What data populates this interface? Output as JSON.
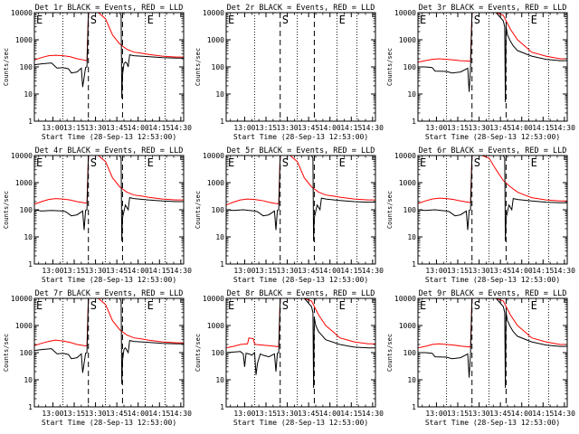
{
  "figure": {
    "xlabel": "Start Time (28-Sep-13 12:53:00)",
    "ylabel": "Counts/sec"
  },
  "chart_data": {
    "type": "line",
    "x_ticks": [
      "13:00",
      "13:15",
      "13:30",
      "13:45",
      "14:00",
      "14:15",
      "14:30"
    ],
    "x_tick_minutes": [
      13,
      28,
      43,
      58,
      73,
      88,
      103
    ],
    "xlim_minutes": [
      0,
      105
    ],
    "xlabel": "Start Time (28-Sep-13 12:53:00)",
    "ylabel": "Counts/sec",
    "y_scale": "log",
    "ylim": [
      1,
      10000
    ],
    "y_ticks": [
      "1",
      "10",
      "100",
      "1000",
      "10000"
    ],
    "series_names": [
      "BLACK = Events",
      "RED = LLD"
    ],
    "series_colors": {
      "events": "#000000",
      "lld": "#ff0000"
    },
    "panels": [
      {
        "title": "Det 1r BLACK = Events, RED = LLD",
        "flags": [
          {
            "label": "E",
            "minute": 0
          },
          {
            "label": "S",
            "minute": 38
          },
          {
            "label": "E",
            "minute": 78
          }
        ],
        "dashed_minutes": [
          38,
          62
        ],
        "dotted_minutes": [
          20,
          50,
          78,
          92
        ],
        "events": {
          "x": [
            0,
            5,
            12,
            16,
            20,
            22,
            24,
            26,
            30,
            33,
            34,
            36,
            37,
            38,
            38.5,
            45,
            60,
            61,
            61.5,
            62,
            63,
            64,
            65,
            66,
            67,
            70,
            80,
            90,
            100,
            105
          ],
          "y": [
            120,
            130,
            140,
            90,
            95,
            90,
            85,
            60,
            65,
            90,
            18,
            95,
            100,
            10000,
            10000,
            10000,
            10000,
            8000,
            7,
            50,
            130,
            150,
            140,
            100,
            280,
            260,
            240,
            220,
            210,
            210
          ]
        },
        "lld": {
          "x": [
            0,
            5,
            10,
            15,
            20,
            25,
            30,
            35,
            36,
            37,
            38,
            40,
            45,
            50,
            55,
            60,
            65,
            70,
            75,
            80,
            90,
            100,
            105
          ],
          "y": [
            180,
            220,
            260,
            270,
            260,
            240,
            200,
            180,
            170,
            175,
            10000,
            10000,
            10000,
            6000,
            1500,
            700,
            450,
            350,
            320,
            290,
            250,
            230,
            230
          ]
        }
      },
      {
        "title": "Det 2r BLACK = Events, RED = LLD",
        "flags": [
          {
            "label": "E",
            "minute": 0
          },
          {
            "label": "S",
            "minute": 38
          },
          {
            "label": "E",
            "minute": 78
          }
        ],
        "dashed_minutes": [
          38,
          62
        ],
        "dotted_minutes": [
          20,
          50,
          78,
          92
        ],
        "events": {
          "x": [],
          "y": []
        },
        "lld": {
          "x": [],
          "y": []
        }
      },
      {
        "title": "Det 3r BLACK = Events, RED = LLD",
        "flags": [
          {
            "label": "E",
            "minute": 0
          },
          {
            "label": "S",
            "minute": 38
          },
          {
            "label": "E",
            "minute": 78
          }
        ],
        "dashed_minutes": [
          38,
          62
        ],
        "dotted_minutes": [
          20,
          50,
          78,
          92
        ],
        "events": {
          "x": [
            0,
            5,
            10,
            12,
            20,
            24,
            30,
            35,
            36,
            37,
            38,
            40,
            45,
            55,
            60,
            61,
            61.5,
            62,
            63,
            65,
            67,
            70,
            80,
            90,
            100,
            105
          ],
          "y": [
            100,
            100,
            95,
            70,
            68,
            60,
            65,
            90,
            12,
            90,
            10000,
            10000,
            10000,
            10000,
            5000,
            3000,
            5,
            3000,
            1500,
            900,
            600,
            400,
            250,
            190,
            170,
            170
          ]
        },
        "lld": {
          "x": [
            0,
            5,
            10,
            15,
            20,
            25,
            30,
            35,
            37,
            38,
            40,
            45,
            55,
            60,
            65,
            70,
            75,
            80,
            90,
            100,
            105
          ],
          "y": [
            150,
            170,
            190,
            200,
            190,
            180,
            170,
            165,
            160,
            10000,
            10000,
            10000,
            10000,
            8000,
            2500,
            1000,
            600,
            350,
            250,
            200,
            200
          ]
        }
      },
      {
        "title": "Det 4r BLACK = Events, RED = LLD",
        "flags": [
          {
            "label": "E",
            "minute": 0
          },
          {
            "label": "S",
            "minute": 38
          },
          {
            "label": "E",
            "minute": 78
          }
        ],
        "dashed_minutes": [
          38,
          62
        ],
        "dotted_minutes": [
          20,
          50,
          78,
          92
        ],
        "events": {
          "x": [
            0,
            5,
            12,
            20,
            22,
            26,
            30,
            34,
            35,
            36,
            37,
            38,
            45,
            60,
            61,
            61.5,
            62,
            64,
            66,
            67,
            70,
            80,
            90,
            100,
            105
          ],
          "y": [
            100,
            90,
            95,
            90,
            85,
            60,
            65,
            90,
            18,
            95,
            100,
            10000,
            10000,
            10000,
            8000,
            7,
            50,
            150,
            100,
            280,
            260,
            230,
            210,
            200,
            200
          ]
        },
        "lld": {
          "x": [
            0,
            5,
            10,
            15,
            20,
            25,
            30,
            35,
            37,
            38,
            40,
            45,
            50,
            55,
            60,
            65,
            70,
            75,
            80,
            90,
            100,
            105
          ],
          "y": [
            160,
            200,
            240,
            260,
            250,
            230,
            200,
            180,
            175,
            10000,
            10000,
            10000,
            6000,
            1500,
            700,
            450,
            350,
            320,
            290,
            250,
            230,
            230
          ]
        }
      },
      {
        "title": "Det 5r BLACK = Events, RED = LLD",
        "flags": [
          {
            "label": "E",
            "minute": 0
          },
          {
            "label": "S",
            "minute": 38
          },
          {
            "label": "E",
            "minute": 78
          }
        ],
        "dashed_minutes": [
          38,
          62
        ],
        "dotted_minutes": [
          20,
          50,
          78,
          92
        ],
        "events": {
          "x": [
            0,
            5,
            12,
            20,
            22,
            26,
            30,
            34,
            35,
            36,
            37,
            38,
            45,
            60,
            61,
            61.5,
            62,
            64,
            66,
            67,
            70,
            80,
            90,
            100,
            105
          ],
          "y": [
            100,
            95,
            100,
            90,
            85,
            60,
            65,
            90,
            18,
            95,
            100,
            10000,
            10000,
            10000,
            8000,
            7,
            50,
            150,
            100,
            270,
            250,
            220,
            200,
            190,
            190
          ]
        },
        "lld": {
          "x": [
            0,
            5,
            10,
            15,
            20,
            25,
            30,
            35,
            37,
            38,
            40,
            45,
            50,
            55,
            60,
            65,
            70,
            75,
            80,
            90,
            100,
            105
          ],
          "y": [
            150,
            190,
            230,
            250,
            240,
            220,
            190,
            170,
            165,
            10000,
            10000,
            10000,
            6000,
            1500,
            700,
            450,
            350,
            320,
            290,
            250,
            230,
            230
          ]
        }
      },
      {
        "title": "Det 6r BLACK = Events, RED = LLD",
        "flags": [
          {
            "label": "E",
            "minute": 0
          },
          {
            "label": "S",
            "minute": 38
          },
          {
            "label": "E",
            "minute": 78
          }
        ],
        "dashed_minutes": [
          38,
          62
        ],
        "dotted_minutes": [
          20,
          50,
          78,
          92
        ],
        "events": {
          "x": [
            0,
            5,
            12,
            20,
            22,
            26,
            30,
            34,
            35,
            36,
            37,
            38,
            45,
            60,
            61,
            61.5,
            62,
            64,
            66,
            67,
            70,
            80,
            90,
            100,
            105
          ],
          "y": [
            100,
            95,
            100,
            90,
            85,
            60,
            65,
            90,
            18,
            95,
            100,
            10000,
            10000,
            10000,
            8000,
            7,
            50,
            150,
            100,
            260,
            240,
            210,
            190,
            180,
            180
          ]
        },
        "lld": {
          "x": [
            0,
            5,
            10,
            15,
            20,
            25,
            30,
            35,
            37,
            38,
            40,
            45,
            50,
            55,
            60,
            65,
            70,
            75,
            80,
            90,
            100,
            105
          ],
          "y": [
            170,
            210,
            250,
            270,
            260,
            240,
            210,
            190,
            185,
            10000,
            10000,
            10000,
            8000,
            3000,
            1200,
            700,
            450,
            350,
            280,
            230,
            210,
            210
          ]
        }
      },
      {
        "title": "Det 7r BLACK = Events, RED = LLD",
        "flags": [
          {
            "label": "E",
            "minute": 0
          },
          {
            "label": "S",
            "minute": 38
          },
          {
            "label": "E",
            "minute": 78
          }
        ],
        "dashed_minutes": [
          38,
          62
        ],
        "dotted_minutes": [
          20,
          50,
          78,
          92
        ],
        "events": {
          "x": [
            0,
            5,
            12,
            16,
            20,
            22,
            24,
            26,
            30,
            33,
            34,
            36,
            37,
            38,
            45,
            60,
            61,
            61.5,
            62,
            63,
            64,
            66,
            67,
            70,
            80,
            90,
            100,
            105
          ],
          "y": [
            120,
            130,
            140,
            90,
            95,
            90,
            85,
            60,
            65,
            90,
            18,
            95,
            100,
            10000,
            10000,
            10000,
            8000,
            7,
            50,
            130,
            150,
            100,
            280,
            260,
            240,
            220,
            210,
            210
          ]
        },
        "lld": {
          "x": [
            0,
            5,
            10,
            15,
            20,
            25,
            30,
            35,
            37,
            38,
            40,
            45,
            50,
            55,
            60,
            65,
            70,
            75,
            80,
            90,
            100,
            105
          ],
          "y": [
            180,
            220,
            260,
            290,
            270,
            240,
            200,
            180,
            175,
            10000,
            10000,
            10000,
            6000,
            1500,
            700,
            450,
            350,
            320,
            290,
            250,
            230,
            230
          ]
        }
      },
      {
        "title": "Det 8r BLACK = Events, RED = LLD",
        "flags": [
          {
            "label": "E",
            "minute": 0
          },
          {
            "label": "S",
            "minute": 38
          },
          {
            "label": "E",
            "minute": 78
          }
        ],
        "dashed_minutes": [
          38,
          62
        ],
        "dotted_minutes": [
          20,
          50,
          78,
          92
        ],
        "events": {
          "x": [
            0,
            5,
            10,
            12,
            13,
            14,
            16,
            18,
            20,
            21,
            22,
            24,
            26,
            30,
            34,
            35,
            36,
            37,
            38,
            45,
            55,
            60,
            61,
            61.5,
            62,
            63,
            65,
            70,
            80,
            90,
            100,
            105
          ],
          "y": [
            100,
            105,
            110,
            90,
            30,
            95,
            90,
            80,
            100,
            15,
            40,
            90,
            80,
            70,
            90,
            20,
            95,
            100,
            10000,
            10000,
            10000,
            5000,
            3000,
            5,
            2000,
            1000,
            600,
            300,
            200,
            160,
            150,
            150
          ]
        },
        "lld": {
          "x": [
            0,
            5,
            10,
            15,
            16,
            17,
            19,
            20,
            21,
            25,
            30,
            35,
            37,
            38,
            40,
            45,
            55,
            60,
            65,
            70,
            75,
            80,
            90,
            100,
            105
          ],
          "y": [
            150,
            170,
            200,
            210,
            350,
            340,
            330,
            210,
            200,
            190,
            180,
            170,
            165,
            10000,
            10000,
            10000,
            10000,
            8000,
            2500,
            1000,
            600,
            350,
            250,
            210,
            210
          ]
        }
      },
      {
        "title": "Det 9r BLACK = Events, RED = LLD",
        "flags": [
          {
            "label": "E",
            "minute": 0
          },
          {
            "label": "S",
            "minute": 38
          },
          {
            "label": "E",
            "minute": 78
          }
        ],
        "dashed_minutes": [
          38,
          62
        ],
        "dotted_minutes": [
          20,
          50,
          78,
          92
        ],
        "events": {
          "x": [
            0,
            5,
            10,
            12,
            20,
            24,
            30,
            35,
            36,
            37,
            38,
            45,
            55,
            60,
            61,
            61.5,
            62,
            63,
            65,
            67,
            70,
            80,
            90,
            100,
            105
          ],
          "y": [
            100,
            100,
            95,
            70,
            68,
            60,
            65,
            90,
            12,
            90,
            10000,
            10000,
            10000,
            5000,
            3000,
            5,
            3000,
            1500,
            900,
            600,
            400,
            250,
            190,
            170,
            170
          ]
        },
        "lld": {
          "x": [
            0,
            5,
            10,
            15,
            20,
            25,
            30,
            35,
            37,
            38,
            40,
            45,
            55,
            60,
            65,
            70,
            75,
            80,
            90,
            100,
            105
          ],
          "y": [
            150,
            170,
            200,
            210,
            200,
            190,
            175,
            165,
            160,
            10000,
            10000,
            10000,
            10000,
            8000,
            2500,
            1000,
            600,
            350,
            250,
            200,
            200
          ]
        }
      }
    ]
  }
}
